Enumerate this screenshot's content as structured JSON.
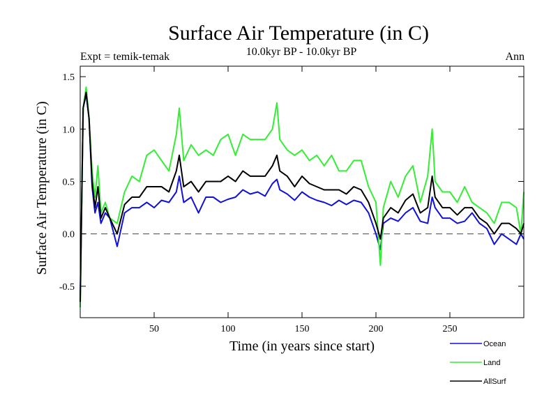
{
  "chart_data": {
    "type": "line",
    "title": "Surface Air Temperature (in C)",
    "subtitle_left": "Expt = temik-temak",
    "subtitle_center": "10.0kyr BP - 10.0kyr BP",
    "subtitle_right": "Ann",
    "xlabel": "Time (in years since start)",
    "ylabel": "Surface Air Temperature (in C)",
    "xlim": [
      0,
      300
    ],
    "ylim": [
      -0.8,
      1.6
    ],
    "xticks": [
      50,
      100,
      150,
      200,
      250
    ],
    "xtick_labels": [
      "50",
      "100",
      "150",
      "200",
      "250"
    ],
    "yticks": [
      -0.5,
      0.0,
      0.5,
      1.0,
      1.5
    ],
    "ytick_labels": [
      "-0.5",
      "0.0",
      "0.5",
      "1.0",
      "1.5"
    ],
    "reference_line": 0.0,
    "legend_position": "bottom-right",
    "x": [
      0,
      2,
      4,
      6,
      8,
      10,
      12,
      14,
      17,
      20,
      25,
      30,
      35,
      40,
      45,
      50,
      55,
      60,
      65,
      67,
      70,
      75,
      80,
      85,
      90,
      95,
      100,
      105,
      110,
      115,
      120,
      125,
      130,
      133,
      135,
      140,
      145,
      150,
      155,
      160,
      165,
      170,
      175,
      180,
      185,
      190,
      195,
      200,
      203,
      205,
      210,
      215,
      220,
      225,
      230,
      235,
      238,
      240,
      245,
      250,
      255,
      260,
      265,
      270,
      275,
      280,
      285,
      290,
      295,
      298,
      300
    ],
    "series": [
      {
        "name": "Ocean",
        "color": "#1010dd",
        "values": [
          -0.6,
          1.2,
          1.33,
          1.1,
          0.45,
          0.2,
          0.3,
          0.1,
          0.2,
          0.15,
          -0.12,
          0.2,
          0.25,
          0.25,
          0.3,
          0.25,
          0.32,
          0.3,
          0.4,
          0.55,
          0.3,
          0.35,
          0.2,
          0.35,
          0.35,
          0.3,
          0.33,
          0.35,
          0.42,
          0.38,
          0.4,
          0.36,
          0.48,
          0.52,
          0.42,
          0.38,
          0.32,
          0.4,
          0.35,
          0.32,
          0.3,
          0.27,
          0.32,
          0.28,
          0.32,
          0.3,
          0.2,
          0.0,
          -0.15,
          0.1,
          0.15,
          0.12,
          0.2,
          0.25,
          0.12,
          0.1,
          0.35,
          0.25,
          0.15,
          0.15,
          0.1,
          0.12,
          0.2,
          0.1,
          0.05,
          -0.1,
          0.0,
          -0.05,
          -0.1,
          0.0,
          -0.05
        ]
      },
      {
        "name": "Land",
        "color": "#33ee33",
        "values": [
          -0.7,
          1.2,
          1.4,
          1.1,
          0.6,
          0.35,
          0.65,
          0.2,
          0.3,
          0.15,
          0.1,
          0.4,
          0.55,
          0.5,
          0.75,
          0.8,
          0.7,
          0.6,
          0.95,
          1.2,
          0.7,
          0.85,
          0.75,
          0.8,
          0.75,
          0.9,
          0.95,
          0.75,
          0.95,
          0.9,
          0.9,
          0.9,
          1.0,
          1.25,
          0.9,
          0.8,
          0.75,
          0.8,
          0.7,
          0.75,
          0.65,
          0.75,
          0.6,
          0.6,
          0.7,
          0.7,
          0.45,
          0.3,
          -0.3,
          0.25,
          0.5,
          0.35,
          0.55,
          0.65,
          0.3,
          0.55,
          1.0,
          0.5,
          0.4,
          0.4,
          0.3,
          0.45,
          0.3,
          0.25,
          0.2,
          0.1,
          0.3,
          0.3,
          0.25,
          0.0,
          0.4
        ]
      },
      {
        "name": "AllSurf",
        "color": "#000000",
        "values": [
          -0.65,
          1.2,
          1.35,
          1.1,
          0.5,
          0.25,
          0.45,
          0.15,
          0.25,
          0.15,
          0.0,
          0.28,
          0.35,
          0.35,
          0.45,
          0.45,
          0.45,
          0.4,
          0.6,
          0.75,
          0.45,
          0.5,
          0.4,
          0.5,
          0.5,
          0.5,
          0.55,
          0.5,
          0.6,
          0.55,
          0.55,
          0.55,
          0.65,
          0.75,
          0.6,
          0.55,
          0.45,
          0.55,
          0.48,
          0.45,
          0.42,
          0.42,
          0.42,
          0.38,
          0.45,
          0.42,
          0.3,
          0.1,
          -0.05,
          0.15,
          0.25,
          0.2,
          0.32,
          0.38,
          0.2,
          0.25,
          0.55,
          0.35,
          0.25,
          0.25,
          0.18,
          0.25,
          0.25,
          0.15,
          0.1,
          0.0,
          0.1,
          0.1,
          0.05,
          0.0,
          0.1
        ]
      }
    ]
  }
}
